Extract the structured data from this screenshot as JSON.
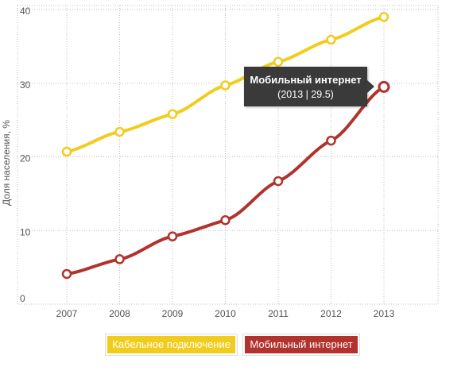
{
  "chart_data": {
    "type": "line",
    "title": "",
    "xlabel": "",
    "ylabel": "Доля населения, %",
    "categories": [
      "2007",
      "2008",
      "2009",
      "2010",
      "2011",
      "2012",
      "2013"
    ],
    "ylim": [
      0,
      40
    ],
    "yticks": [
      0,
      10,
      20,
      30,
      40
    ],
    "grid": true,
    "legend": "bottom-center",
    "series": [
      {
        "name": "Кабельное подключение",
        "color": "#f2cc1d",
        "values": [
          20.7,
          23.4,
          25.8,
          29.7,
          32.9,
          35.9,
          39.0
        ]
      },
      {
        "name": "Мобильный интернет",
        "color": "#b2322d",
        "values": [
          4.1,
          6.1,
          9.2,
          11.4,
          16.7,
          22.2,
          29.5
        ]
      }
    ]
  },
  "tooltip": {
    "title": "Мобильный интернет",
    "value": "(2013 | 29.5)"
  }
}
